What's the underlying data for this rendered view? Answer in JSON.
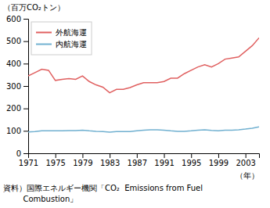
{
  "chart_data": {
    "type": "line",
    "y_label": "（百万CO₂トン）",
    "x_label": "（年）",
    "annotations": [
      "資料）国際エネルギー機関「CO₂  Emissions from Fuel",
      "        Combustion」"
    ],
    "x": [
      1971,
      1972,
      1973,
      1974,
      1975,
      1976,
      1977,
      1978,
      1979,
      1980,
      1981,
      1982,
      1983,
      1984,
      1985,
      1986,
      1987,
      1988,
      1989,
      1990,
      1991,
      1992,
      1993,
      1994,
      1995,
      1996,
      1997,
      1998,
      1999,
      2000,
      2001,
      2002,
      2003,
      2004,
      2005
    ],
    "series": [
      {
        "name": "外航海運",
        "color": "#e06060",
        "values": [
          345,
          360,
          375,
          370,
          325,
          330,
          333,
          330,
          345,
          320,
          305,
          295,
          270,
          285,
          285,
          293,
          305,
          315,
          315,
          315,
          320,
          335,
          335,
          355,
          370,
          385,
          395,
          385,
          400,
          420,
          425,
          430,
          455,
          480,
          515
        ]
      },
      {
        "name": "内航海運",
        "color": "#70b0d0",
        "values": [
          95,
          97,
          100,
          100,
          100,
          100,
          101,
          101,
          103,
          100,
          98,
          97,
          94,
          97,
          97,
          97,
          100,
          103,
          105,
          105,
          103,
          100,
          98,
          98,
          100,
          103,
          105,
          102,
          100,
          103,
          103,
          105,
          108,
          112,
          118
        ]
      }
    ],
    "xlim": [
      1971,
      2005
    ],
    "xticks": [
      1971,
      1975,
      1979,
      1983,
      1987,
      1991,
      1995,
      1999,
      2003
    ],
    "ylim": [
      0,
      600
    ],
    "yticks": [
      0,
      100,
      200,
      300,
      400,
      500,
      600
    ],
    "grid": false,
    "legend": "upper left"
  }
}
